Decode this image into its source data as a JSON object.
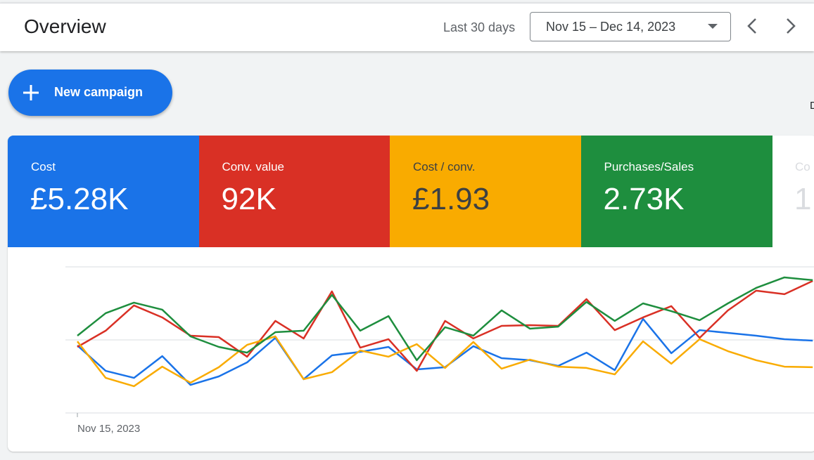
{
  "header": {
    "title": "Overview",
    "range_label": "Last 30 days",
    "date_range": "Nov 15 – Dec 14, 2023"
  },
  "button": "New campaign",
  "side_label": "D",
  "cards": [
    "£5.28K",
    "92K",
    "£1.93",
    "2.73K"
  ],
  "extra_card": {
    "title": "Co",
    "value": "1"
  },
  "chart_data": {
    "type": "line",
    "categories": [
      "Nov 15, 2023",
      null,
      null,
      null,
      null,
      null,
      null,
      null,
      null,
      null,
      null,
      null,
      null,
      null,
      null,
      null,
      null,
      null,
      null,
      null,
      null,
      null,
      null,
      null,
      null,
      null,
      null
    ],
    "ylim": [
      0,
      100
    ],
    "yticks": [
      0,
      50,
      100
    ],
    "grid": true,
    "series": [
      {
        "name": "Cost",
        "color": "#1a73e8",
        "text_color": "#ffffff",
        "values": [
          46.2,
          28.8,
          24.0,
          38.9,
          19.2,
          25.0,
          34.6,
          51.4,
          23.1,
          39.4,
          41.8,
          45.2,
          29.8,
          31.3,
          45.7,
          37.5,
          36.1,
          32.2,
          41.3,
          29.3,
          64.4,
          40.9,
          56.7,
          54.8,
          52.9,
          50.5,
          49.5
        ]
      },
      {
        "name": "Conv. value",
        "color": "#d93025",
        "text_color": "#ffffff",
        "values": [
          45.2,
          56.3,
          73.6,
          65.4,
          52.9,
          51.9,
          38.5,
          63.0,
          51.0,
          83.2,
          44.7,
          50.5,
          28.8,
          63.0,
          51.0,
          59.6,
          60.1,
          59.6,
          77.9,
          56.7,
          65.4,
          73.1,
          51.4,
          70.2,
          83.7,
          81.3,
          90.4
        ]
      },
      {
        "name": "Cost / conv.",
        "color": "#f9ab00",
        "text_color": "#3c4043",
        "values": [
          49.0,
          24.0,
          18.3,
          31.7,
          20.7,
          31.3,
          46.6,
          52.4,
          23.1,
          27.9,
          42.8,
          38.5,
          47.1,
          30.8,
          48.6,
          30.3,
          36.5,
          31.7,
          30.8,
          26.4,
          49.0,
          33.7,
          50.5,
          42.3,
          36.1,
          31.7,
          31.3
        ]
      },
      {
        "name": "Purchases/Sales",
        "color": "#1e8e3e",
        "text_color": "#ffffff",
        "values": [
          52.9,
          68.3,
          75.5,
          70.7,
          52.4,
          45.2,
          41.3,
          55.3,
          56.3,
          80.8,
          56.3,
          66.3,
          36.1,
          58.7,
          52.9,
          70.2,
          57.7,
          59.1,
          76.0,
          63.0,
          75.0,
          69.7,
          63.5,
          75.0,
          85.6,
          92.8,
          90.9
        ]
      }
    ]
  }
}
